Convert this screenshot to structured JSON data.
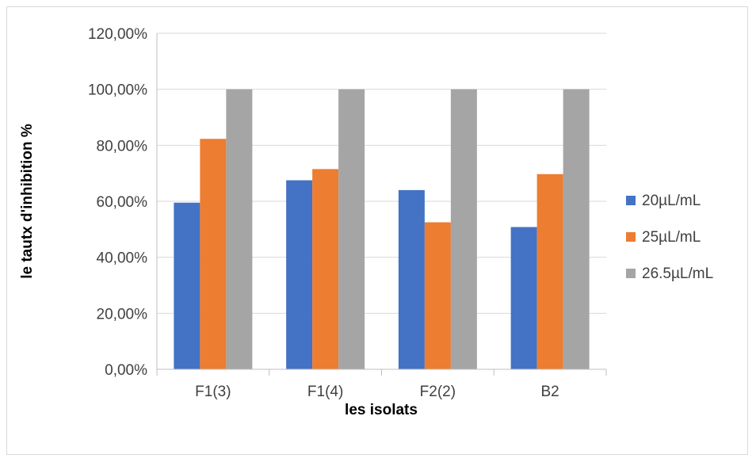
{
  "chart_data": {
    "type": "bar",
    "title": "",
    "xlabel": "les isolats",
    "ylabel": "le tautx d'inhibition %",
    "categories": [
      "F1(3)",
      "F1(4)",
      "F2(2)",
      "B2"
    ],
    "series": [
      {
        "name": "20µL/mL",
        "color": "#4472c4",
        "values": [
          59.5,
          67.5,
          64.0,
          50.8
        ]
      },
      {
        "name": "25µL/mL",
        "color": "#ed7d31",
        "values": [
          82.3,
          71.5,
          52.5,
          69.7
        ]
      },
      {
        "name": "26.5µL/mL",
        "color": "#a5a5a5",
        "values": [
          100,
          100,
          100,
          100
        ]
      }
    ],
    "ylim": [
      0,
      120
    ],
    "yticks": [
      0,
      20,
      40,
      60,
      80,
      100,
      120
    ],
    "ytick_labels": [
      "0,00%",
      "20,00%",
      "40,00%",
      "60,00%",
      "80,00%",
      "100,00%",
      "120,00%"
    ],
    "grid": true,
    "legend_position": "right"
  }
}
